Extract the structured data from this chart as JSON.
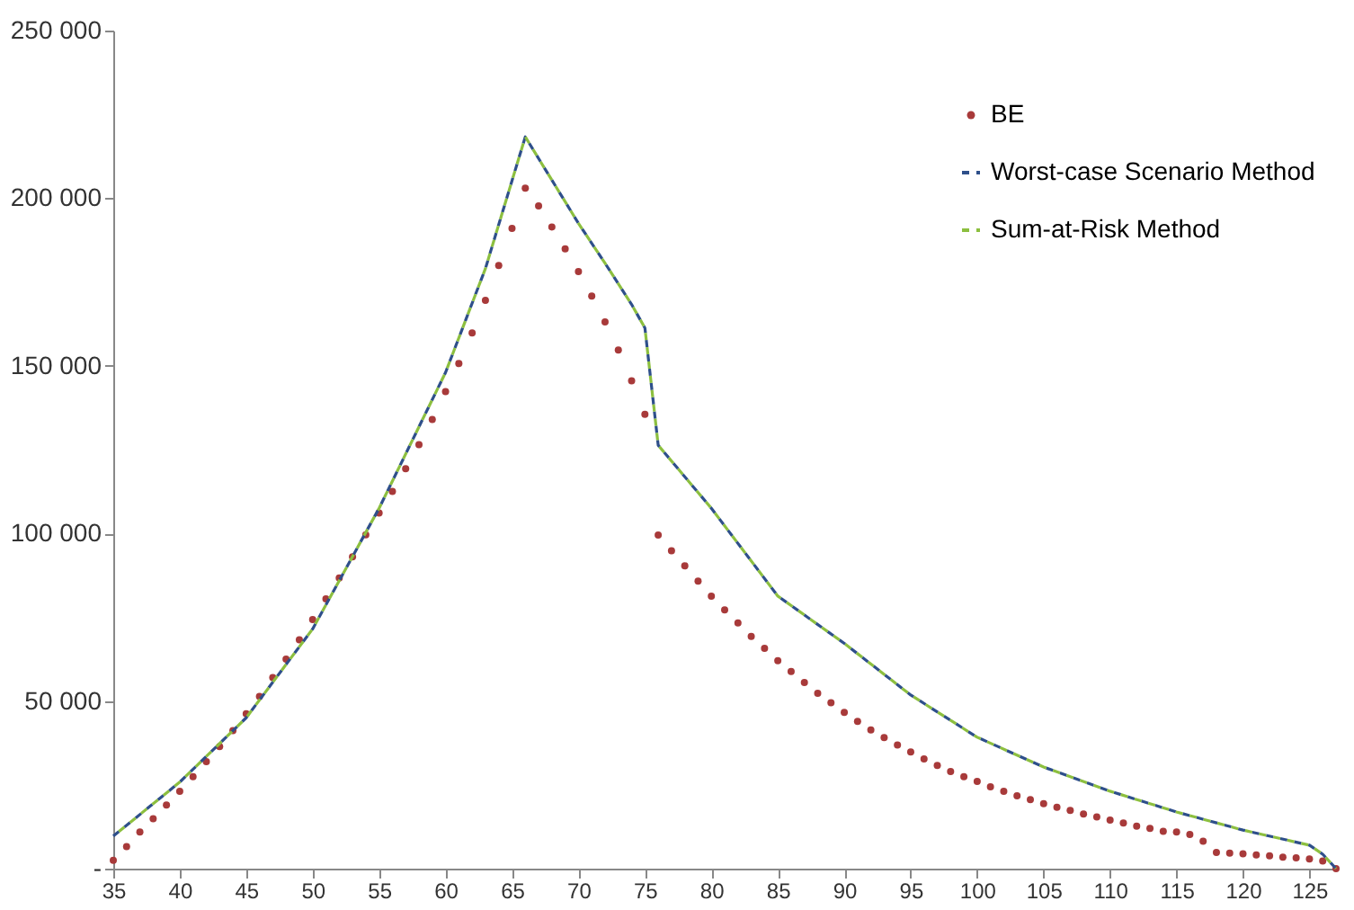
{
  "chart_data": {
    "type": "line",
    "xlim": [
      35,
      127
    ],
    "xticks": [
      35,
      40,
      45,
      50,
      55,
      60,
      65,
      70,
      75,
      80,
      85,
      90,
      95,
      100,
      105,
      110,
      115,
      120,
      125
    ],
    "ylim": [
      0,
      250000
    ],
    "yticks": [
      {
        "value": 0,
        "label": "-"
      },
      {
        "value": 50000,
        "label": "50 000"
      },
      {
        "value": 100000,
        "label": "100 000"
      },
      {
        "value": 150000,
        "label": "150 000"
      },
      {
        "value": 200000,
        "label": "200 000"
      },
      {
        "value": 250000,
        "label": "250 000"
      }
    ],
    "grid": false,
    "legend": "top right",
    "series": [
      {
        "name": "BE",
        "type": "scatter",
        "marker": "circle",
        "color": "#a83a3a",
        "x": [
          35,
          36,
          37,
          38,
          39,
          40,
          41,
          42,
          43,
          44,
          45,
          46,
          47,
          48,
          49,
          50,
          51,
          52,
          53,
          54,
          55,
          56,
          57,
          58,
          59,
          60,
          61,
          62,
          63,
          64,
          65,
          66,
          67,
          68,
          69,
          70,
          71,
          72,
          73,
          74,
          75,
          76,
          77,
          78,
          79,
          80,
          81,
          82,
          83,
          84,
          85,
          86,
          87,
          88,
          89,
          90,
          91,
          92,
          93,
          94,
          95,
          96,
          97,
          98,
          99,
          100,
          101,
          102,
          103,
          104,
          105,
          106,
          107,
          108,
          109,
          110,
          111,
          112,
          113,
          114,
          115,
          116,
          117,
          118,
          119,
          120,
          121,
          122,
          123,
          124,
          125,
          126,
          127
        ],
        "values": [
          2500,
          6600,
          10900,
          14900,
          19000,
          23100,
          27400,
          31900,
          36400,
          41200,
          46200,
          51400,
          57000,
          62500,
          68300,
          74300,
          80500,
          86700,
          93000,
          99600,
          106100,
          112500,
          119300,
          126500,
          134000,
          142300,
          150700,
          159800,
          169500,
          179900,
          191000,
          203000,
          197700,
          191400,
          184900,
          178100,
          170800,
          163100,
          154700,
          145500,
          135500,
          99500,
          94800,
          90300,
          85800,
          81300,
          77200,
          73300,
          69300,
          65700,
          62000,
          58800,
          55500,
          52300,
          49500,
          46600,
          43900,
          41400,
          39100,
          36900,
          34800,
          32700,
          30800,
          29000,
          27400,
          26000,
          24400,
          23100,
          21700,
          20600,
          19400,
          18300,
          17400,
          16300,
          15400,
          14500,
          13600,
          12700,
          12000,
          11100,
          10900,
          10200,
          8200,
          4800,
          4600,
          4400,
          4100,
          3800,
          3400,
          3200,
          2900,
          2300,
          0
        ]
      },
      {
        "name": "Worst-case Scenario Method",
        "line_style": "dashed",
        "color": "#2e4f8a",
        "x": [
          35,
          40,
          45,
          50,
          55,
          60,
          63,
          66,
          70,
          72,
          74,
          75,
          76,
          80,
          85,
          90,
          95,
          100,
          105,
          110,
          115,
          120,
          125,
          126,
          127
        ],
        "values": [
          9700,
          25800,
          45000,
          71500,
          107500,
          148000,
          179000,
          218300,
          192500,
          180600,
          168300,
          161300,
          126300,
          107500,
          81300,
          67200,
          51800,
          39200,
          30300,
          23100,
          16900,
          11500,
          7000,
          4300,
          0
        ]
      },
      {
        "name": "Sum-at-Risk Method",
        "line_style": "dashed",
        "color": "#8cbf3f",
        "x": [
          35,
          40,
          45,
          50,
          55,
          60,
          63,
          66,
          70,
          72,
          74,
          75,
          76,
          80,
          85,
          90,
          95,
          100,
          105,
          110,
          115,
          120,
          125,
          126,
          127
        ],
        "values": [
          9700,
          25800,
          45000,
          71500,
          107500,
          148000,
          179000,
          218300,
          192500,
          180600,
          168300,
          161300,
          126300,
          107500,
          81300,
          67200,
          51800,
          39200,
          30300,
          23100,
          16900,
          11500,
          7000,
          4300,
          0
        ]
      }
    ]
  }
}
